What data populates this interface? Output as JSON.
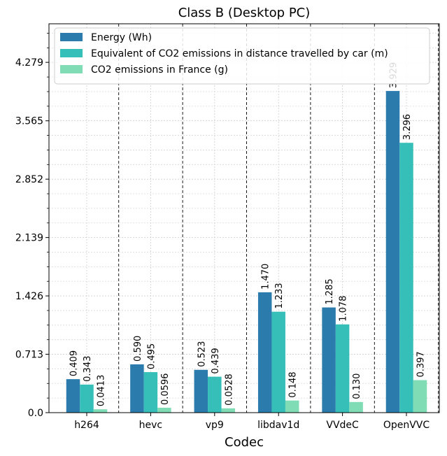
{
  "chart_data": {
    "type": "bar",
    "title": "Class B (Desktop PC)",
    "xlabel": "Codec",
    "ylabel": "",
    "categories": [
      "h264",
      "hevc",
      "vp9",
      "libdav1d",
      "VVdeC",
      "OpenVVC"
    ],
    "series": [
      {
        "name": "Energy (Wh)",
        "color": "#2c7bad",
        "values": [
          0.409,
          0.59,
          0.523,
          1.47,
          1.285,
          3.929
        ],
        "labels": [
          "0.409",
          "0.590",
          "0.523",
          "1.470",
          "1.285",
          "3.929"
        ]
      },
      {
        "name": "Equivalent of CO2 emissions in distance travelled by car (m)",
        "color": "#36bfb8",
        "values": [
          0.343,
          0.495,
          0.439,
          1.233,
          1.078,
          3.296
        ],
        "labels": [
          "0.343",
          "0.495",
          "0.439",
          "1.233",
          "1.078",
          "3.296"
        ]
      },
      {
        "name": "CO2 emissions in France (g)",
        "color": "#7fdcb4",
        "values": [
          0.0413,
          0.0596,
          0.0528,
          0.148,
          0.13,
          0.397
        ],
        "labels": [
          "0.0413",
          "0.0596",
          "0.0528",
          "0.148",
          "0.130",
          "0.397"
        ]
      }
    ],
    "yticks": [
      0.0,
      0.713,
      1.426,
      2.139,
      2.852,
      3.565,
      4.279
    ],
    "ytick_labels": [
      "0.0",
      "0.713",
      "1.426",
      "2.139",
      "2.852",
      "3.565",
      "4.279"
    ],
    "ylim": [
      0,
      4.75
    ],
    "grid": true,
    "legend_position": "top-left"
  }
}
